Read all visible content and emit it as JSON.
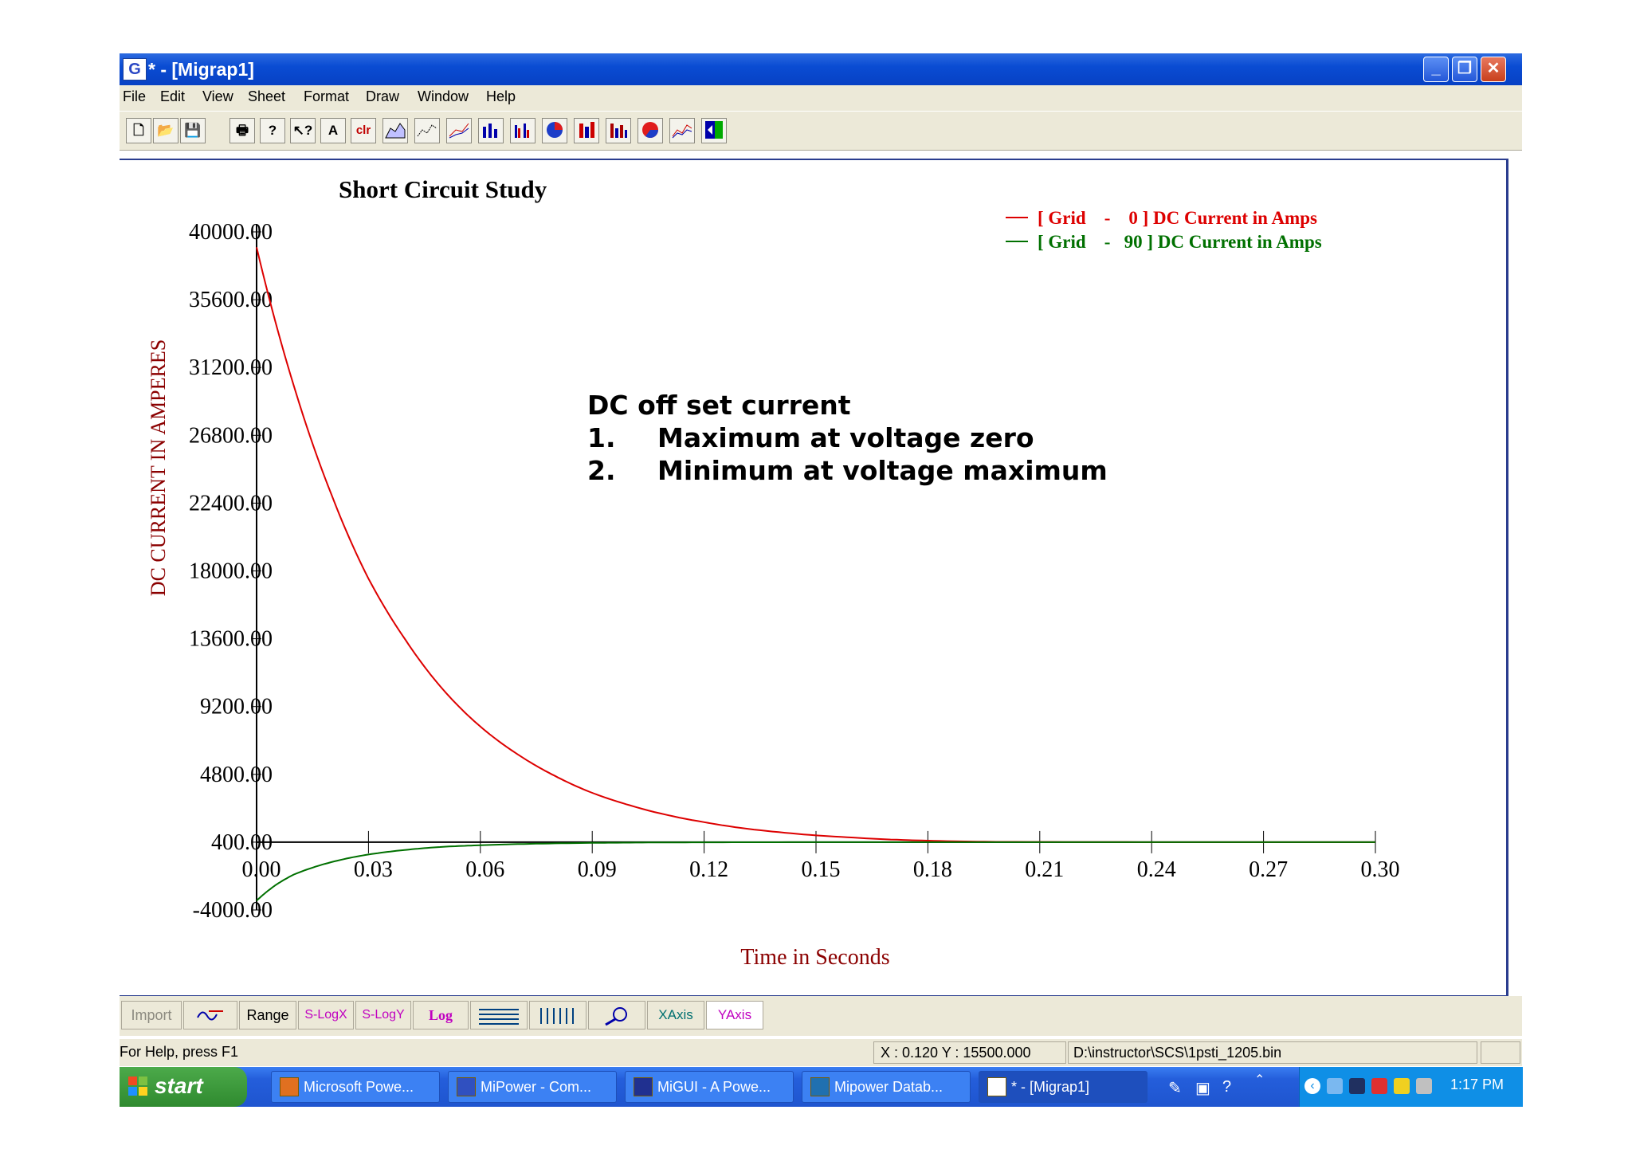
{
  "window": {
    "title": "* - [Migrap1]",
    "app_icon": "G"
  },
  "menu": [
    "File",
    "Edit",
    "View",
    "Sheet",
    "Format",
    "Draw",
    "Window",
    "Help"
  ],
  "toolbar": [
    "new-icon",
    "open-icon",
    "save-icon",
    "print-icon",
    "help-icon",
    "context-help-icon",
    "text-icon",
    "clear-icon",
    "area-chart-icon",
    "line-chart-icon",
    "multi-line-icon",
    "bar-chart-icon",
    "multi-bar-icon",
    "pie-chart-icon",
    "stacked-bar-icon",
    "grouped-bar-icon",
    "doughnut-icon",
    "step-chart-icon",
    "exit-icon"
  ],
  "toolbar_labels": {
    "text": "A",
    "clear": "clr"
  },
  "chart_data": {
    "type": "line",
    "title": "Short Circuit Study",
    "xlabel": "Time in Seconds",
    "ylabel": "DC CURRENT IN AMPERES",
    "xlim": [
      0,
      0.3
    ],
    "ylim": [
      -4000,
      40000
    ],
    "x_ticks": [
      "0.00",
      "0.03",
      "0.06",
      "0.09",
      "0.12",
      "0.15",
      "0.18",
      "0.21",
      "0.24",
      "0.27",
      "0.30"
    ],
    "y_ticks": [
      "40000.00",
      "35600.00",
      "31200.00",
      "26800.00",
      "22400.00",
      "18000.00",
      "13600.00",
      "9200.00",
      "4800.00",
      "400.00",
      "-4000.00"
    ],
    "y_tick_values": [
      40000,
      35600,
      31200,
      26800,
      22400,
      18000,
      13600,
      9200,
      4800,
      400,
      -4000
    ],
    "legend_position": "top-right",
    "series": [
      {
        "name": "[ Grid    -    0 ] DC Current in Amps",
        "color": "#dd0000",
        "x": [
          0.0,
          0.01,
          0.02,
          0.03,
          0.04,
          0.05,
          0.06,
          0.07,
          0.08,
          0.09,
          0.1,
          0.12,
          0.14,
          0.16,
          0.18,
          0.2,
          0.24,
          0.3
        ],
        "y": [
          39000,
          30000,
          23000,
          17500,
          13500,
          10300,
          7900,
          6100,
          4700,
          3600,
          2800,
          1700,
          1050,
          700,
          500,
          420,
          400,
          400
        ]
      },
      {
        "name": "[ Grid    -   90 ] DC Current in Amps",
        "color": "#007000",
        "x": [
          0.0,
          0.005,
          0.01,
          0.02,
          0.03,
          0.04,
          0.05,
          0.06,
          0.08,
          0.1,
          0.12,
          0.15,
          0.2,
          0.3
        ],
        "y": [
          -3400,
          -2400,
          -1700,
          -900,
          -400,
          -100,
          100,
          200,
          320,
          370,
          390,
          400,
          400,
          400
        ]
      }
    ],
    "annotation": {
      "heading": "DC off set current",
      "items": [
        {
          "num": "1.",
          "text": "Maximum at voltage zero"
        },
        {
          "num": "2.",
          "text": "Minimum at voltage maximum"
        }
      ]
    }
  },
  "bottom_toolbar": {
    "import": "Import",
    "range": "Range",
    "slogx": "S-LogX",
    "slogy": "S-LogY",
    "log": "Log",
    "xaxis": "XAxis",
    "yaxis": "YAxis"
  },
  "status": {
    "help": "For Help, press F1",
    "coords": "X :   0.120   Y : 15500.000",
    "path": "D:\\instructor\\SCS\\1psti_1205.bin"
  },
  "taskbar": {
    "start": "start",
    "tasks": [
      "Microsoft Powe...",
      "MiPower - Com...",
      "MiGUI - A Powe...",
      "Mipower Datab...",
      "* - [Migrap1]"
    ],
    "clock": "1:17 PM"
  }
}
